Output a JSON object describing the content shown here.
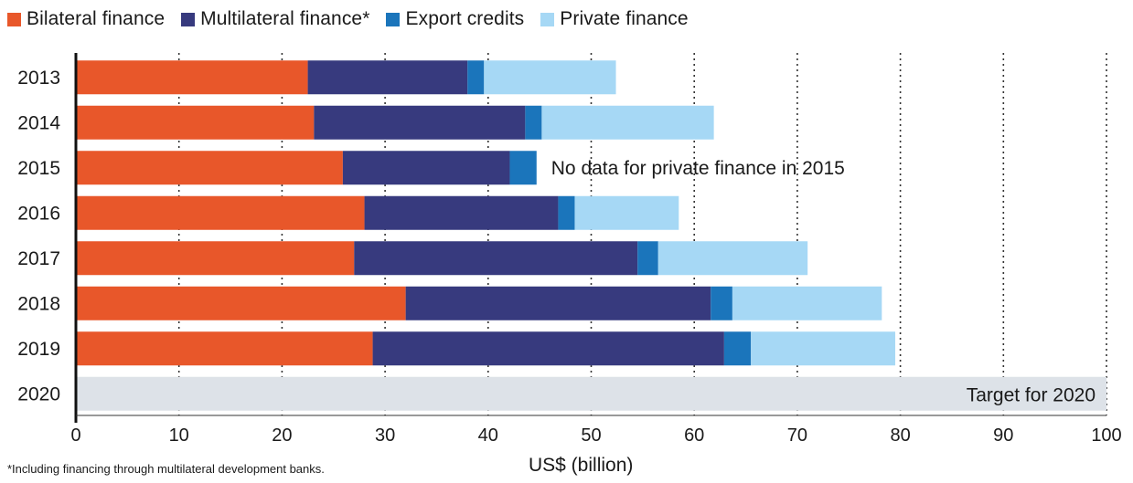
{
  "chart_data": {
    "type": "bar",
    "orientation": "horizontal",
    "stacked": true,
    "categories": [
      "2013",
      "2014",
      "2015",
      "2016",
      "2017",
      "2018",
      "2019",
      "2020"
    ],
    "series": [
      {
        "name": "Bilateral finance",
        "color": "#e8572a",
        "values": [
          22.5,
          23.1,
          25.9,
          28.0,
          27.0,
          32.0,
          28.8,
          null
        ]
      },
      {
        "name": "Multilateral finance*",
        "color": "#373a7e",
        "values": [
          15.5,
          20.5,
          16.2,
          18.8,
          27.5,
          29.6,
          34.1,
          null
        ]
      },
      {
        "name": "Export credits",
        "color": "#1b75bb",
        "values": [
          1.6,
          1.6,
          2.6,
          1.6,
          2.0,
          2.1,
          2.6,
          null
        ]
      },
      {
        "name": "Private finance",
        "color": "#a6d8f5",
        "values": [
          12.8,
          16.7,
          null,
          10.1,
          14.5,
          14.5,
          14.0,
          null
        ]
      }
    ],
    "target": {
      "category": "2020",
      "value": 100,
      "label": "Target for 2020",
      "color": "#dde2e8"
    },
    "xlim": [
      0,
      100
    ],
    "xticks": [
      0,
      10,
      20,
      30,
      40,
      50,
      60,
      70,
      80,
      90,
      100
    ],
    "xlabel": "US$ (billion)",
    "grid": "vertical dotted",
    "legend_position": "top-left",
    "annotations": [
      {
        "category": "2015",
        "text": "No data for private finance in 2015"
      }
    ],
    "footnote": "*Including financing through multilateral development banks."
  }
}
